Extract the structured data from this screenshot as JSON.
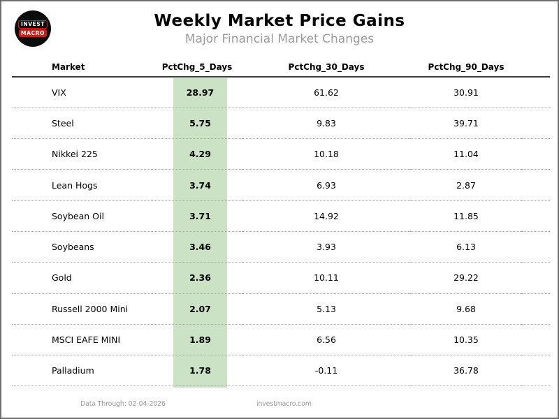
{
  "header": {
    "title": "Weekly Market Price Gains",
    "subtitle": "Major Financial Market Changes",
    "logo": {
      "line1": "INVEST",
      "line2": "MACRO"
    }
  },
  "table": {
    "columns": [
      "Market",
      "PctChg_5_Days",
      "PctChg_30_Days",
      "PctChg_90_Days"
    ],
    "highlight_column": "PctChg_5_Days",
    "highlight_color": "#cbe2c5",
    "rows": [
      {
        "market": "VIX",
        "pctchg_5_days": "28.97",
        "pctchg_30_days": "61.62",
        "pctchg_90_days": "30.91"
      },
      {
        "market": "Steel",
        "pctchg_5_days": "5.75",
        "pctchg_30_days": "9.83",
        "pctchg_90_days": "39.71"
      },
      {
        "market": "Nikkei 225",
        "pctchg_5_days": "4.29",
        "pctchg_30_days": "10.18",
        "pctchg_90_days": "11.04"
      },
      {
        "market": "Lean Hogs",
        "pctchg_5_days": "3.74",
        "pctchg_30_days": "6.93",
        "pctchg_90_days": "2.87"
      },
      {
        "market": "Soybean Oil",
        "pctchg_5_days": "3.71",
        "pctchg_30_days": "14.92",
        "pctchg_90_days": "11.85"
      },
      {
        "market": "Soybeans",
        "pctchg_5_days": "3.46",
        "pctchg_30_days": "3.93",
        "pctchg_90_days": "6.13"
      },
      {
        "market": "Gold",
        "pctchg_5_days": "2.36",
        "pctchg_30_days": "10.11",
        "pctchg_90_days": "29.22"
      },
      {
        "market": "Russell 2000 Mini",
        "pctchg_5_days": "2.07",
        "pctchg_30_days": "5.13",
        "pctchg_90_days": "9.68"
      },
      {
        "market": "MSCI EAFE MINI",
        "pctchg_5_days": "1.89",
        "pctchg_30_days": "6.56",
        "pctchg_90_days": "10.35"
      },
      {
        "market": "Palladium",
        "pctchg_5_days": "1.78",
        "pctchg_30_days": "-0.11",
        "pctchg_90_days": "36.78"
      }
    ]
  },
  "footer": {
    "data_through": "Data Through: 02-04-2026",
    "site": "investmacro.com"
  },
  "chart_data": {
    "type": "table",
    "title": "Weekly Market Price Gains",
    "subtitle": "Major Financial Market Changes",
    "columns": [
      "Market",
      "PctChg_5_Days",
      "PctChg_30_Days",
      "PctChg_90_Days"
    ],
    "categories": [
      "VIX",
      "Steel",
      "Nikkei 225",
      "Lean Hogs",
      "Soybean Oil",
      "Soybeans",
      "Gold",
      "Russell 2000 Mini",
      "MSCI EAFE MINI",
      "Palladium"
    ],
    "series": [
      {
        "name": "PctChg_5_Days",
        "values": [
          28.97,
          5.75,
          4.29,
          3.74,
          3.71,
          3.46,
          2.36,
          2.07,
          1.89,
          1.78
        ]
      },
      {
        "name": "PctChg_30_Days",
        "values": [
          61.62,
          9.83,
          10.18,
          6.93,
          14.92,
          3.93,
          10.11,
          5.13,
          6.56,
          -0.11
        ]
      },
      {
        "name": "PctChg_90_Days",
        "values": [
          30.91,
          39.71,
          11.04,
          2.87,
          11.85,
          6.13,
          29.22,
          9.68,
          10.35,
          36.78
        ]
      }
    ],
    "layout_hints": {
      "highlighted_column": "PctChg_5_Days",
      "sorted_by": "PctChg_5_Days desc"
    }
  }
}
